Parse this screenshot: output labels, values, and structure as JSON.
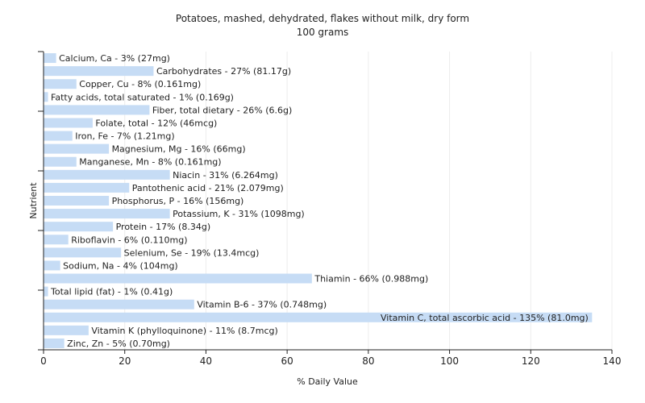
{
  "chart_data": {
    "type": "bar",
    "orientation": "horizontal",
    "title": "Potatoes, mashed, dehydrated, flakes without milk, dry form",
    "subtitle": "100 grams",
    "xlabel": "% Daily Value",
    "ylabel": "Nutrient",
    "xlim": [
      0,
      140
    ],
    "xticks": [
      0,
      20,
      40,
      60,
      80,
      100,
      120,
      140
    ],
    "grid": true,
    "bar_color": "#c6dcf5",
    "categories": [
      "Calcium, Ca",
      "Carbohydrates",
      "Copper, Cu",
      "Fatty acids, total saturated",
      "Fiber, total dietary",
      "Folate, total",
      "Iron, Fe",
      "Magnesium, Mg",
      "Manganese, Mn",
      "Niacin",
      "Pantothenic acid",
      "Phosphorus, P",
      "Potassium, K",
      "Protein",
      "Riboflavin",
      "Selenium, Se",
      "Sodium, Na",
      "Thiamin",
      "Total lipid (fat)",
      "Vitamin B-6",
      "Vitamin C, total ascorbic acid",
      "Vitamin K (phylloquinone)",
      "Zinc, Zn"
    ],
    "values": [
      3,
      27,
      8,
      1,
      26,
      12,
      7,
      16,
      8,
      31,
      21,
      16,
      31,
      17,
      6,
      19,
      4,
      66,
      1,
      37,
      135,
      11,
      5
    ],
    "labels": [
      "Calcium, Ca - 3% (27mg)",
      "Carbohydrates - 27% (81.17g)",
      "Copper, Cu - 8% (0.161mg)",
      "Fatty acids, total saturated - 1% (0.169g)",
      "Fiber, total dietary - 26% (6.6g)",
      "Folate, total - 12% (46mcg)",
      "Iron, Fe - 7% (1.21mg)",
      "Magnesium, Mg - 16% (66mg)",
      "Manganese, Mn - 8% (0.161mg)",
      "Niacin - 31% (6.264mg)",
      "Pantothenic acid - 21% (2.079mg)",
      "Phosphorus, P - 16% (156mg)",
      "Potassium, K - 31% (1098mg)",
      "Protein - 17% (8.34g)",
      "Riboflavin - 6% (0.110mg)",
      "Selenium, Se - 19% (13.4mcg)",
      "Sodium, Na - 4% (104mg)",
      "Thiamin - 66% (0.988mg)",
      "Total lipid (fat) - 1% (0.41g)",
      "Vitamin B-6 - 37% (0.748mg)",
      "Vitamin C, total ascorbic acid - 135% (81.0mg)",
      "Vitamin K (phylloquinone) - 11% (8.7mcg)",
      "Zinc, Zn - 5% (0.70mg)"
    ]
  }
}
